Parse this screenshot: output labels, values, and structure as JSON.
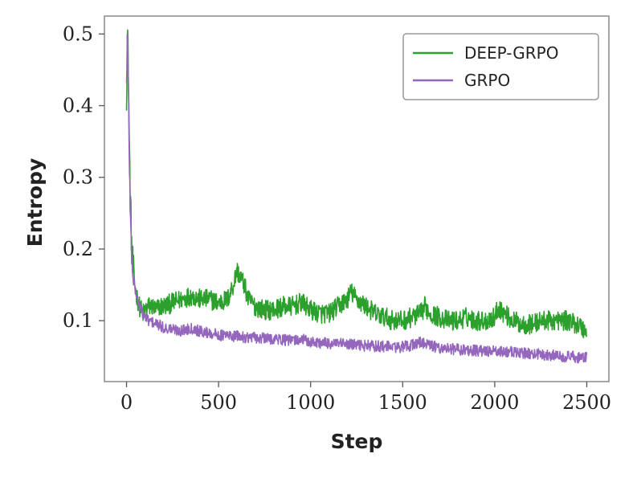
{
  "chart_data": {
    "type": "line",
    "xlabel": "Step",
    "ylabel": "Entropy",
    "xlim": [
      -120,
      2620
    ],
    "ylim": [
      0.015,
      0.525
    ],
    "xticks": [
      0,
      500,
      1000,
      1500,
      2000,
      2500
    ],
    "xtick_labels": [
      "0",
      "500",
      "1000",
      "1500",
      "2000",
      "2500"
    ],
    "yticks": [
      0.1,
      0.2,
      0.3,
      0.4,
      0.5
    ],
    "ytick_labels": [
      "0.1",
      "0.2",
      "0.3",
      "0.4",
      "0.5"
    ],
    "legend_position": "top-right",
    "grid": false,
    "series": [
      {
        "name": "DEEP-GRPO",
        "color": "#2ca02c",
        "x": [
          0,
          5,
          10,
          15,
          20,
          25,
          30,
          40,
          50,
          60,
          70,
          80,
          90,
          100,
          120,
          140,
          160,
          180,
          200,
          250,
          300,
          350,
          400,
          450,
          500,
          550,
          580,
          600,
          620,
          640,
          660,
          700,
          750,
          800,
          850,
          900,
          950,
          1000,
          1050,
          1100,
          1150,
          1200,
          1220,
          1250,
          1300,
          1350,
          1400,
          1450,
          1500,
          1550,
          1600,
          1620,
          1650,
          1700,
          1750,
          1800,
          1850,
          1900,
          1950,
          2000,
          2020,
          2050,
          2100,
          2150,
          2200,
          2250,
          2300,
          2350,
          2400,
          2450,
          2500
        ],
        "values": [
          0.42,
          0.51,
          0.45,
          0.35,
          0.28,
          0.23,
          0.19,
          0.16,
          0.14,
          0.13,
          0.12,
          0.115,
          0.11,
          0.115,
          0.12,
          0.12,
          0.115,
          0.12,
          0.12,
          0.125,
          0.13,
          0.135,
          0.13,
          0.13,
          0.125,
          0.13,
          0.15,
          0.17,
          0.16,
          0.15,
          0.13,
          0.12,
          0.115,
          0.115,
          0.12,
          0.12,
          0.125,
          0.115,
          0.11,
          0.11,
          0.12,
          0.13,
          0.14,
          0.13,
          0.12,
          0.11,
          0.105,
          0.1,
          0.1,
          0.105,
          0.11,
          0.12,
          0.11,
          0.105,
          0.1,
          0.1,
          0.105,
          0.1,
          0.1,
          0.105,
          0.12,
          0.11,
          0.1,
          0.095,
          0.095,
          0.1,
          0.1,
          0.1,
          0.1,
          0.095,
          0.085
        ]
      },
      {
        "name": "GRPO",
        "color": "#9467bd",
        "x": [
          0,
          5,
          10,
          15,
          20,
          25,
          30,
          40,
          50,
          60,
          70,
          80,
          90,
          100,
          120,
          140,
          160,
          180,
          200,
          250,
          300,
          350,
          400,
          450,
          500,
          550,
          600,
          650,
          700,
          750,
          800,
          850,
          900,
          950,
          1000,
          1100,
          1200,
          1300,
          1400,
          1500,
          1550,
          1600,
          1650,
          1700,
          1800,
          1900,
          2000,
          2100,
          2200,
          2300,
          2400,
          2500
        ],
        "values": [
          0.43,
          0.51,
          0.43,
          0.33,
          0.26,
          0.21,
          0.18,
          0.155,
          0.14,
          0.13,
          0.12,
          0.115,
          0.11,
          0.105,
          0.1,
          0.098,
          0.095,
          0.093,
          0.09,
          0.088,
          0.086,
          0.09,
          0.085,
          0.083,
          0.08,
          0.079,
          0.078,
          0.077,
          0.076,
          0.075,
          0.075,
          0.073,
          0.072,
          0.074,
          0.07,
          0.068,
          0.067,
          0.065,
          0.064,
          0.063,
          0.066,
          0.07,
          0.065,
          0.062,
          0.06,
          0.058,
          0.057,
          0.056,
          0.054,
          0.052,
          0.05,
          0.048
        ]
      }
    ]
  }
}
